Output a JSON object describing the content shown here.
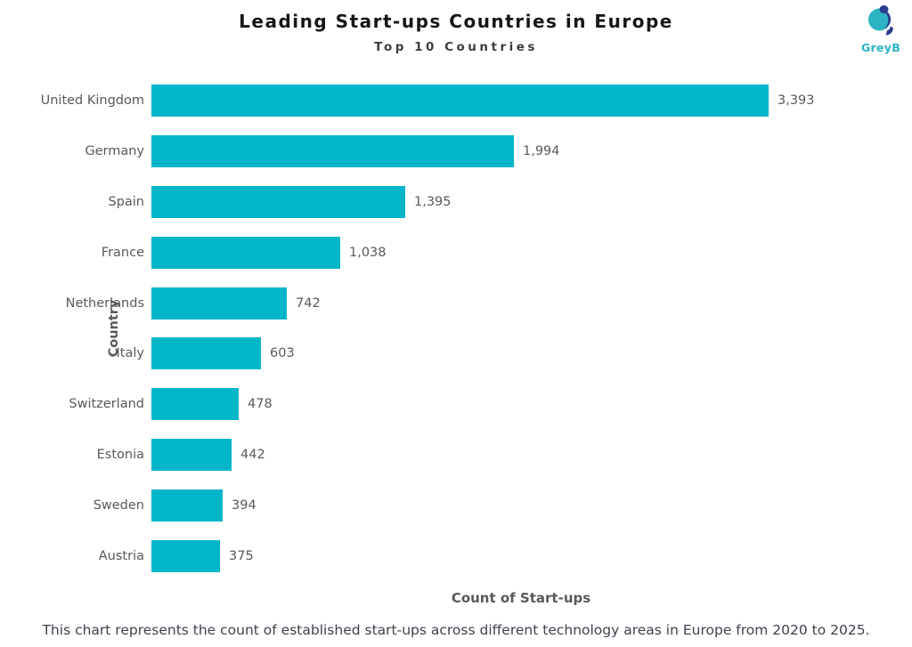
{
  "header": {
    "title": "Leading Start-ups Countries in Europe",
    "subtitle": "Top 10 Countries",
    "logo_text": "GreyB"
  },
  "chart_data": {
    "type": "bar",
    "orientation": "horizontal",
    "title": "Leading Start-ups Countries in Europe",
    "subtitle": "Top 10 Countries",
    "categories": [
      "United Kingdom",
      "Germany",
      "Spain",
      "France",
      "Netherlands",
      "Italy",
      "Switzerland",
      "Estonia",
      "Sweden",
      "Austria"
    ],
    "values": [
      3393,
      1994,
      1395,
      1038,
      742,
      603,
      478,
      442,
      394,
      375
    ],
    "value_labels": [
      "3,393",
      "1,994",
      "1,395",
      "1,038",
      "742",
      "603",
      "478",
      "442",
      "394",
      "375"
    ],
    "xlabel": "Count of Start-ups",
    "ylabel": "Country",
    "xlim": [
      0,
      3393
    ],
    "bar_color": "#02b6c9",
    "grid": false,
    "legend": false
  },
  "colors": {
    "bar": "#02b6c9",
    "title_text": "#161616",
    "axis_text": "#595959",
    "caption_text": "#41414d",
    "logo_teal": "#2bb3c4",
    "logo_navy": "#2b3990"
  },
  "footer": {
    "caption": "This chart represents the count of established start-ups across different technology areas in Europe from 2020 to 2025."
  }
}
